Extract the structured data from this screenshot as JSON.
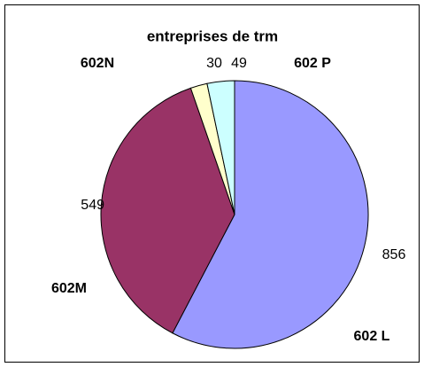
{
  "chart_data": {
    "type": "pie",
    "title": "entreprises de trm",
    "categories": [
      "602 L",
      "602M",
      "602N",
      "602 P"
    ],
    "values": [
      856,
      549,
      30,
      49
    ],
    "colors": [
      "#9999ff",
      "#993366",
      "#ffffcc",
      "#ccffff"
    ]
  }
}
